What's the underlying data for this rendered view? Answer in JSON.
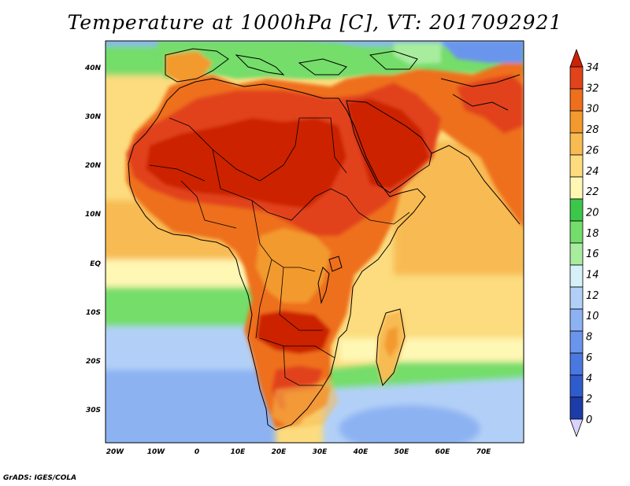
{
  "title": "Temperature at 1000hPa [C], VT: 2017092921",
  "credit": "GrADS: IGES/COLA",
  "map": {
    "region": "Africa",
    "variable": "Temperature at 1000hPa",
    "lat_labels": [
      "40N",
      "30N",
      "20N",
      "10N",
      "EQ",
      "10S",
      "20S",
      "30S"
    ],
    "lon_labels": [
      "20W",
      "10W",
      "0",
      "10E",
      "20E",
      "30E",
      "40E",
      "50E",
      "60E",
      "70E"
    ]
  },
  "colorbar": {
    "levels": [
      "0",
      "2",
      "4",
      "6",
      "8",
      "10",
      "12",
      "14",
      "16",
      "18",
      "20",
      "22",
      "24",
      "26",
      "28",
      "30",
      "32",
      "34"
    ],
    "colors": [
      "#1a1a6e",
      "#1e3ca8",
      "#2f5ccd",
      "#4a78e0",
      "#6a95ec",
      "#8db2f2",
      "#b2d0f7",
      "#d6f0f7",
      "#a8ec9e",
      "#74dd6b",
      "#3cc74a",
      "#fff7b4",
      "#fcdc7e",
      "#f8bb52",
      "#f39a2e",
      "#ee6f1c",
      "#e1431a",
      "#cc2206"
    ],
    "under_color": "#d8d4ff"
  }
}
